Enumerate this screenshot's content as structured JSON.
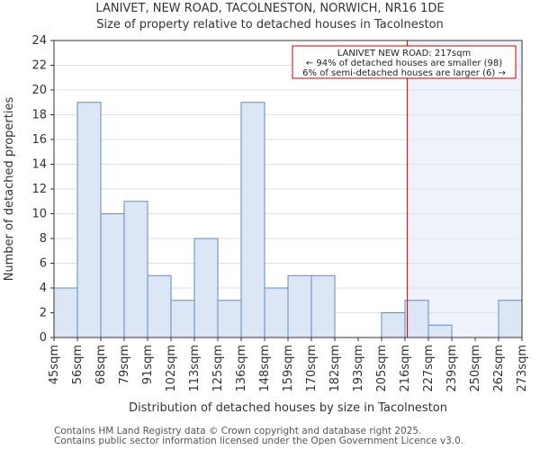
{
  "title_line1": "LANIVET, NEW ROAD, TACOLNESTON, NORWICH, NR16 1DE",
  "title_line2": "Size of property relative to detached houses in Tacolneston",
  "footer_line1": "Contains HM Land Registry data © Crown copyright and database right 2025.",
  "footer_line2": "Contains public sector information licensed under the Open Government Licence v3.0.",
  "chart_data": {
    "type": "bar",
    "xlabel": "Distribution of detached houses by size in Tacolneston",
    "ylabel": "Number of detached properties",
    "ylim": [
      0,
      24
    ],
    "yticks": [
      0,
      2,
      4,
      6,
      8,
      10,
      12,
      14,
      16,
      18,
      20,
      22,
      24
    ],
    "bin_edges": [
      "45sqm",
      "56sqm",
      "68sqm",
      "79sqm",
      "91sqm",
      "102sqm",
      "113sqm",
      "125sqm",
      "136sqm",
      "148sqm",
      "159sqm",
      "170sqm",
      "182sqm",
      "193sqm",
      "205sqm",
      "216sqm",
      "227sqm",
      "239sqm",
      "250sqm",
      "262sqm",
      "273sqm"
    ],
    "values": [
      4,
      19,
      10,
      11,
      5,
      3,
      8,
      3,
      19,
      4,
      5,
      5,
      0,
      0,
      2,
      3,
      1,
      0,
      0,
      3
    ],
    "marker": {
      "position_bin": 15.1,
      "label_line1": "LANIVET NEW ROAD: 217sqm",
      "label_line2": "← 94% of detached houses are smaller (98)",
      "label_line3": "6% of semi-detached houses are larger (6) →"
    },
    "colors": {
      "bar_fill": "#dce6f5",
      "bar_edge": "#5b8dc9",
      "marker": "#cc0000",
      "highlight_fill": "#eef3fb",
      "grid": "#e0e0e0"
    }
  }
}
